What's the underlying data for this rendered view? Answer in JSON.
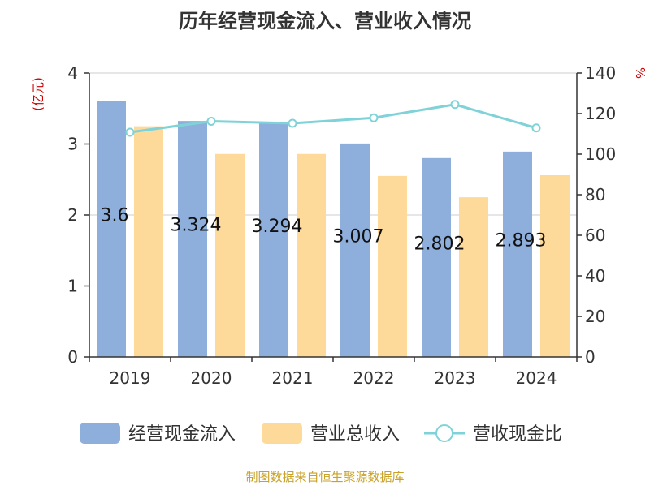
{
  "chart_data": {
    "type": "bar",
    "title": "历年经营现金流入、营业收入情况",
    "categories": [
      "2019",
      "2020",
      "2021",
      "2022",
      "2023",
      "2024"
    ],
    "series": [
      {
        "name": "经营现金流入",
        "type": "bar",
        "axis": "left",
        "color": "#8eaedb",
        "values": [
          3.6,
          3.324,
          3.294,
          3.007,
          2.802,
          2.893
        ],
        "data_labels": [
          "3.6",
          "3.324",
          "3.294",
          "3.007",
          "2.802",
          "2.893"
        ]
      },
      {
        "name": "营业总收入",
        "type": "bar",
        "axis": "left",
        "color": "#fdd99a",
        "values": [
          3.25,
          2.86,
          2.86,
          2.55,
          2.25,
          2.56
        ]
      },
      {
        "name": "营收现金比",
        "type": "line",
        "axis": "right",
        "color": "#7fd3d8",
        "values": [
          110.8,
          116.2,
          115.2,
          117.9,
          124.5,
          112.9
        ]
      }
    ],
    "y_left": {
      "label": "(亿元)",
      "min": 0,
      "max": 4,
      "ticks": [
        0,
        1,
        2,
        3,
        4
      ]
    },
    "y_right": {
      "label": "%",
      "min": 0,
      "max": 140,
      "ticks": [
        0,
        20,
        40,
        60,
        80,
        100,
        120,
        140
      ]
    },
    "grid": true,
    "legend_position": "bottom"
  },
  "source_text": "制图数据来自恒生聚源数据库",
  "colors": {
    "title": "#333333",
    "axis": "#333333",
    "grid": "#cccccc",
    "unit_label": "#cc0000",
    "source": "#c9a227"
  }
}
